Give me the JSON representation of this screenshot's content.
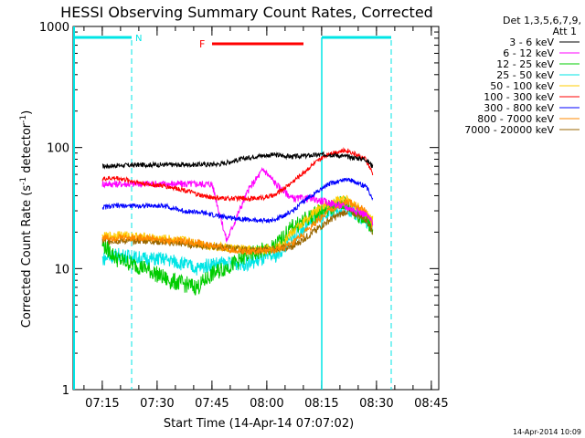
{
  "chart_data": {
    "type": "line",
    "title": "HESSI Observing Summary Count Rates, Corrected",
    "xlabel": "Start Time (14-Apr-14 07:07:02)",
    "ylabel_main": "Corrected Count Rate (s",
    "ylabel_sup1": "-1",
    "ylabel_mid": " detector",
    "ylabel_sup2": "-1",
    "ylabel_end": ")",
    "x_start_minutes": 7.03,
    "xlim_minutes_after_0707": [
      0,
      100
    ],
    "ylim": [
      1,
      1000
    ],
    "yscale": "log",
    "x_ticks": [
      {
        "label": "07:15",
        "t": 7.97
      },
      {
        "label": "07:30",
        "t": 22.97
      },
      {
        "label": "07:45",
        "t": 37.97
      },
      {
        "label": "08:00",
        "t": 52.97
      },
      {
        "label": "08:15",
        "t": 67.97
      },
      {
        "label": "08:30",
        "t": 82.97
      },
      {
        "label": "08:45",
        "t": 97.97
      }
    ],
    "y_ticks": [
      {
        "label": "1",
        "v": 1
      },
      {
        "label": "10",
        "v": 10
      },
      {
        "label": "100",
        "v": 100
      },
      {
        "label": "1000",
        "v": 1000
      }
    ],
    "legend_header": [
      "Det 1,3,5,6,7,9,",
      "Att 1"
    ],
    "legend_position": "right",
    "series": [
      {
        "name": "3 - 6 keV",
        "color": "#000000",
        "x": [
          8,
          12,
          20,
          30,
          40,
          50,
          55,
          60,
          70,
          80,
          82
        ],
        "y": [
          70,
          71,
          72,
          72,
          73,
          85,
          87,
          84,
          88,
          80,
          70
        ]
      },
      {
        "name": "6 - 12 keV",
        "color": "#ff00ff",
        "x": [
          8,
          12,
          20,
          28,
          34,
          38,
          42,
          45,
          48,
          52,
          56,
          60,
          65,
          70,
          75,
          80,
          82
        ],
        "y": [
          50,
          50,
          50,
          50,
          50,
          50,
          17,
          28,
          45,
          66,
          48,
          38,
          38,
          35,
          32,
          28,
          24
        ]
      },
      {
        "name": "12 - 25 keV",
        "color": "#00cc00",
        "x": [
          8,
          12,
          20,
          26,
          30,
          34,
          38,
          44,
          48,
          55,
          60,
          68,
          74,
          78,
          82
        ],
        "y": [
          16,
          12,
          10,
          8,
          7.5,
          7,
          9,
          11,
          13,
          15,
          22,
          30,
          35,
          28,
          22
        ]
      },
      {
        "name": "25 - 50 keV",
        "color": "#00e5e5",
        "x": [
          8,
          12,
          20,
          25,
          30,
          34,
          38,
          44,
          48,
          52,
          56,
          60,
          68,
          74,
          78,
          82
        ],
        "y": [
          12,
          13,
          12,
          12,
          11,
          10,
          11,
          11,
          11,
          12,
          13,
          18,
          28,
          32,
          28,
          22
        ]
      },
      {
        "name": "50 - 100 keV",
        "color": "#ffcc00",
        "x": [
          8,
          12,
          20,
          30,
          40,
          50,
          56,
          60,
          68,
          74,
          78,
          82
        ],
        "y": [
          18,
          19,
          18,
          17,
          15,
          14,
          15,
          20,
          33,
          38,
          32,
          25
        ]
      },
      {
        "name": "100 - 300 keV",
        "color": "#ff0000",
        "x": [
          8,
          12,
          20,
          25,
          30,
          35,
          40,
          45,
          50,
          55,
          60,
          65,
          70,
          75,
          80,
          82
        ],
        "y": [
          55,
          56,
          50,
          48,
          45,
          40,
          38,
          38,
          38,
          40,
          52,
          70,
          90,
          95,
          80,
          60
        ]
      },
      {
        "name": "300 - 800 keV",
        "color": "#0000ff",
        "x": [
          8,
          12,
          20,
          25,
          30,
          35,
          40,
          45,
          50,
          55,
          60,
          65,
          70,
          75,
          80,
          82
        ],
        "y": [
          32,
          33,
          33,
          33,
          30,
          29,
          27,
          26,
          25,
          25,
          30,
          40,
          50,
          55,
          48,
          38
        ]
      },
      {
        "name": "800 - 7000 keV",
        "color": "#ff8800",
        "x": [
          8,
          12,
          20,
          25,
          30,
          35,
          40,
          45,
          50,
          55,
          60,
          65,
          70,
          75,
          80,
          82
        ],
        "y": [
          18,
          18,
          18,
          17,
          17,
          16,
          15,
          14,
          14,
          14,
          16,
          22,
          30,
          36,
          30,
          22
        ]
      },
      {
        "name": "7000 - 20000 keV",
        "color": "#996600",
        "x": [
          8,
          12,
          20,
          30,
          40,
          50,
          60,
          70,
          75,
          80,
          82
        ],
        "y": [
          17,
          17,
          17,
          16,
          15,
          14,
          15,
          25,
          30,
          26,
          20
        ]
      }
    ],
    "annotations": {
      "n_label": "N",
      "f_label": "F",
      "cyan_color": "#00e5e5",
      "flag_color": "#ff0000",
      "night_intervals": [
        [
          0,
          16
        ],
        [
          68,
          87
        ]
      ],
      "saa_lines": [
        16,
        68,
        87
      ],
      "flare_interval": [
        38,
        63
      ]
    },
    "timestamp": "14-Apr-2014 10:09"
  }
}
